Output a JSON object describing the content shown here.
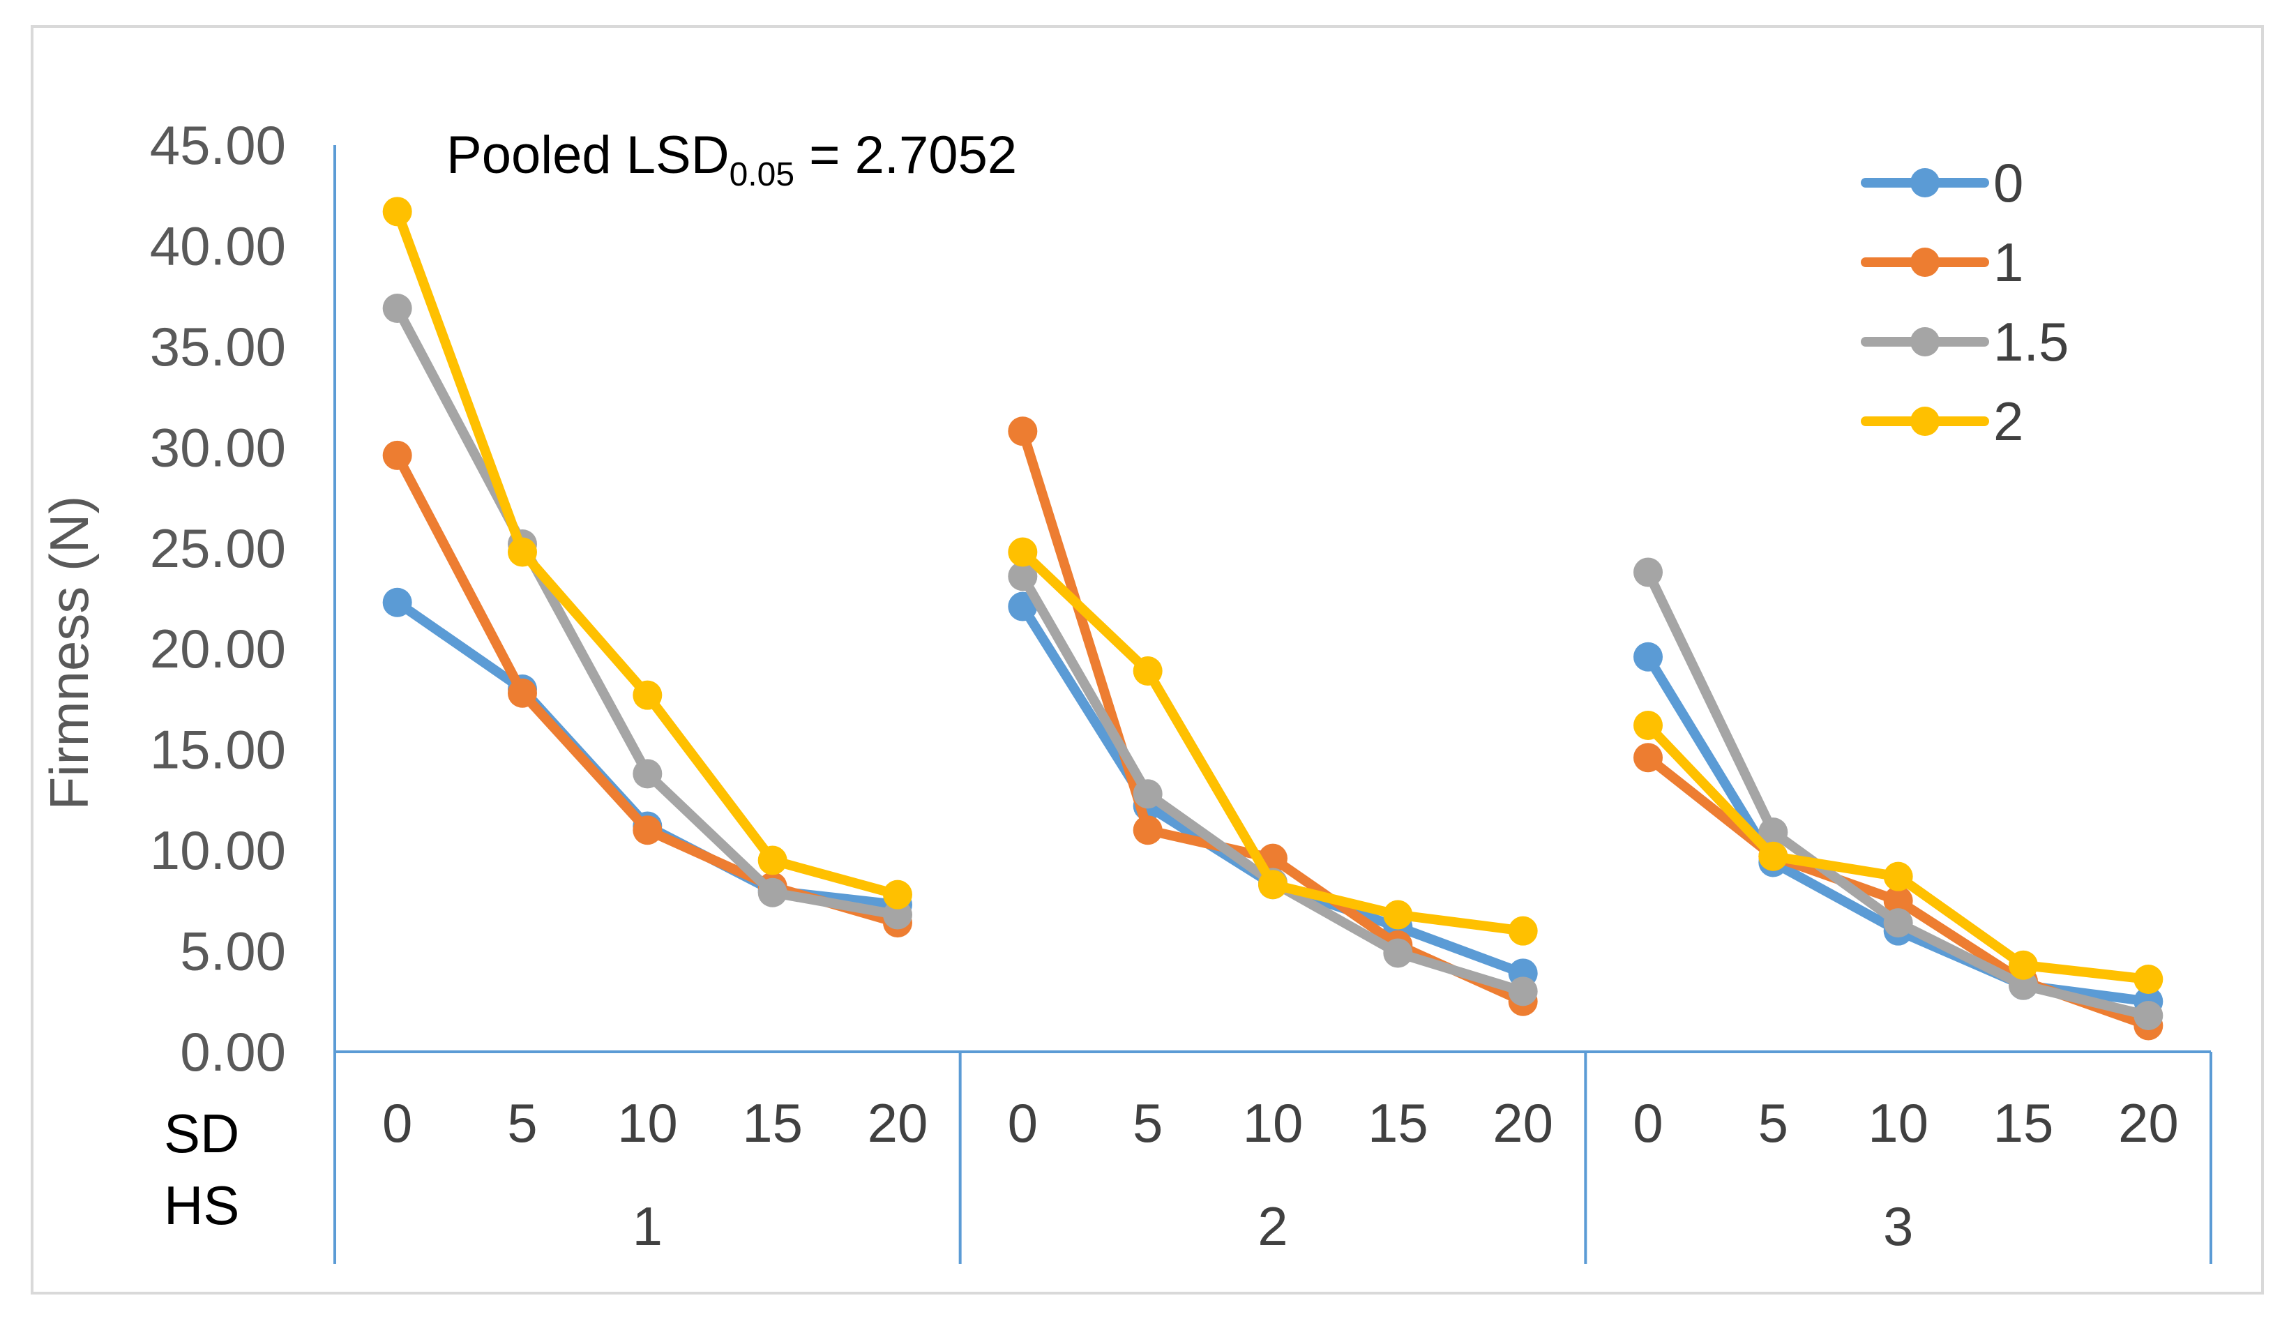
{
  "chart_data": {
    "type": "line",
    "title": "",
    "ylabel": "Firmness (N)",
    "ylim": [
      0,
      45
    ],
    "yticks": [
      "0.00",
      "5.00",
      "10.00",
      "15.00",
      "20.00",
      "25.00",
      "30.00",
      "35.00",
      "40.00",
      "45.00"
    ],
    "grid": false,
    "row_labels": {
      "sd": "SD",
      "hs": "HS"
    },
    "groups": [
      "1",
      "2",
      "3"
    ],
    "sd_levels": [
      "0",
      "5",
      "10",
      "15",
      "20"
    ],
    "annotation": {
      "prefix": "Pooled LSD",
      "subscript": "0.05",
      "suffix": " = 2.7052"
    },
    "legend_position": "top-right",
    "series": [
      {
        "name": "0",
        "color": "#5B9BD5",
        "values": [
          [
            22.3,
            18.0,
            11.2,
            8.0,
            7.3
          ],
          [
            22.1,
            12.2,
            8.3,
            6.2,
            3.9
          ],
          [
            19.6,
            9.4,
            6.0,
            3.3,
            2.5
          ]
        ]
      },
      {
        "name": "1",
        "color": "#ED7D31",
        "values": [
          [
            29.6,
            17.8,
            11.0,
            8.2,
            6.4
          ],
          [
            30.8,
            11.0,
            9.6,
            5.3,
            2.5
          ],
          [
            14.6,
            9.7,
            7.5,
            3.5,
            1.3
          ]
        ]
      },
      {
        "name": "1.5",
        "color": "#A5A5A5",
        "values": [
          [
            36.9,
            25.2,
            13.8,
            7.9,
            6.8
          ],
          [
            23.6,
            12.8,
            8.4,
            4.9,
            3.0
          ],
          [
            23.8,
            10.9,
            6.4,
            3.3,
            1.8
          ]
        ]
      },
      {
        "name": "2",
        "color": "#FFC000",
        "values": [
          [
            41.7,
            24.8,
            17.7,
            9.5,
            7.8
          ],
          [
            24.8,
            18.9,
            8.3,
            6.8,
            6.0
          ],
          [
            16.2,
            9.7,
            8.7,
            4.3,
            3.6
          ]
        ]
      }
    ]
  }
}
